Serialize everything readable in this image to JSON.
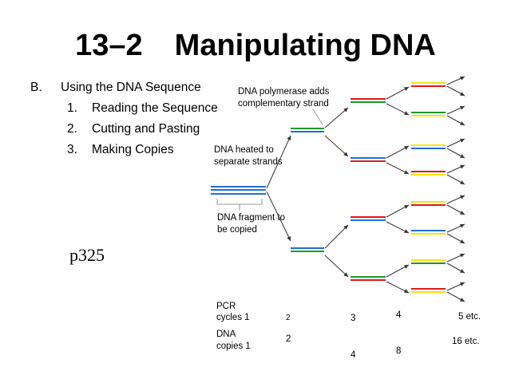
{
  "slide": {
    "number": "13–2",
    "title": "Manipulating DNA"
  },
  "outline": {
    "section_marker": "B.",
    "section_label": "Using the DNA Sequence",
    "items": [
      {
        "marker": "1.",
        "label": "Reading the Sequence"
      },
      {
        "marker": "2.",
        "label": "Cutting and Pasting"
      },
      {
        "marker": "3.",
        "label": "Making Copies"
      }
    ]
  },
  "page_ref": "p325",
  "diagram": {
    "labels": {
      "polymerase_line1": "DNA polymerase adds",
      "polymerase_line2": "complementary strand",
      "heated_line1": "DNA heated to",
      "heated_line2": "separate strands",
      "fragment_line1": "DNA fragment to",
      "fragment_line2": "be copied"
    },
    "colors": {
      "blue": "#1f6fd1",
      "green": "#1a9a2a",
      "red": "#e01818",
      "yellow": "#f5e50a",
      "arrow": "#333333",
      "bracket": "#999999"
    },
    "table": {
      "pcr_label": "PCR",
      "cycles_label": "cycles 1",
      "dna_label": "DNA",
      "copies_label": "copies 1",
      "cycles": [
        "2",
        "3",
        "4",
        "5 etc."
      ],
      "copies": [
        "2",
        "4",
        "8",
        "16 etc."
      ]
    }
  }
}
